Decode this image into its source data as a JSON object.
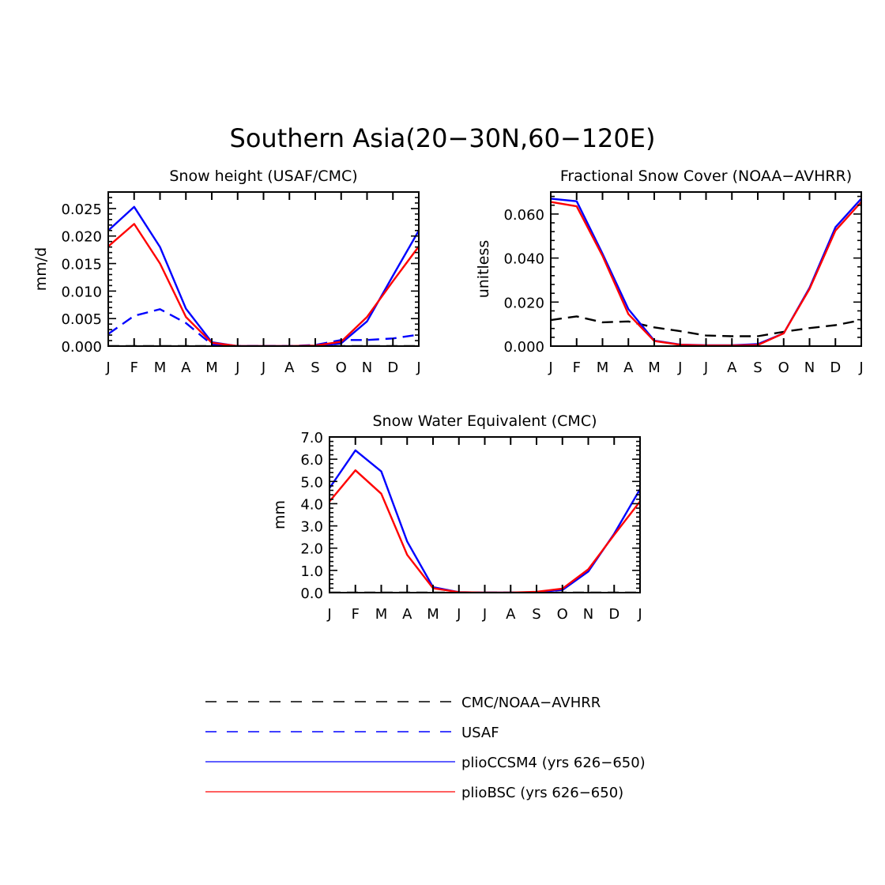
{
  "figure_title": "Southern Asia(20−30N,60−120E)",
  "colors": {
    "blue": "#0000ff",
    "red": "#ff0000",
    "black": "#000000"
  },
  "legend": [
    {
      "label": "CMC/NOAA−AVHRR",
      "color": "#000000",
      "style": "dashed"
    },
    {
      "label": "USAF",
      "color": "#0000ff",
      "style": "dashed"
    },
    {
      "label": "plioCCSM4 (yrs 626−650)",
      "color": "#0000ff",
      "style": "solid"
    },
    {
      "label": "plioBSC (yrs 626−650)",
      "color": "#ff0000",
      "style": "solid"
    }
  ],
  "chart_data": [
    {
      "type": "line",
      "title": "Snow height (USAF/CMC)",
      "xlabel": "",
      "ylabel": "mm/d",
      "categories": [
        "J",
        "F",
        "M",
        "A",
        "M",
        "J",
        "J",
        "A",
        "S",
        "O",
        "N",
        "D",
        "J"
      ],
      "ylim": [
        0,
        0.028
      ],
      "yticks": [
        "0.000",
        "0.005",
        "0.010",
        "0.015",
        "0.020",
        "0.025"
      ],
      "ytick_values": [
        0,
        0.005,
        0.01,
        0.015,
        0.02,
        0.025
      ],
      "series": [
        {
          "name": "CMC/NOAA−AVHRR",
          "color": "#000000",
          "style": "dashed",
          "values": [
            0,
            0,
            0,
            0,
            0,
            0,
            0,
            0,
            0,
            0,
            0,
            0,
            0
          ]
        },
        {
          "name": "USAF",
          "color": "#0000ff",
          "style": "dashed",
          "values": [
            0.0022,
            0.0055,
            0.0067,
            0.0042,
            0.0003,
            0,
            0,
            0,
            0.0002,
            0.0011,
            0.0011,
            0.0014,
            0.0021
          ]
        },
        {
          "name": "plioCCSM4 (yrs 626−650)",
          "color": "#0000ff",
          "style": "solid",
          "values": [
            0.021,
            0.0253,
            0.018,
            0.0068,
            0.0007,
            0,
            0,
            0,
            0,
            0.0005,
            0.0045,
            0.0128,
            0.021
          ]
        },
        {
          "name": "plioBSC (yrs 626−650)",
          "color": "#ff0000",
          "style": "solid",
          "values": [
            0.0181,
            0.0222,
            0.015,
            0.0053,
            0.0006,
            0,
            0,
            0,
            0.0001,
            0.0008,
            0.0053,
            0.0118,
            0.0181
          ]
        }
      ]
    },
    {
      "type": "line",
      "title": "Fractional Snow Cover (NOAA−AVHRR)",
      "xlabel": "",
      "ylabel": "unitless",
      "categories": [
        "J",
        "F",
        "M",
        "A",
        "M",
        "J",
        "J",
        "A",
        "S",
        "O",
        "N",
        "D",
        "J"
      ],
      "ylim": [
        0,
        0.07
      ],
      "yticks": [
        "0.000",
        "0.020",
        "0.040",
        "0.060"
      ],
      "ytick_values": [
        0,
        0.02,
        0.04,
        0.06
      ],
      "series": [
        {
          "name": "CMC/NOAA−AVHRR",
          "color": "#000000",
          "style": "dashed",
          "values": [
            0.0118,
            0.0135,
            0.0108,
            0.0112,
            0.0085,
            0.0068,
            0.0048,
            0.0045,
            0.0045,
            0.0065,
            0.0082,
            0.0095,
            0.0118
          ]
        },
        {
          "name": "plioCCSM4 (yrs 626−650)",
          "color": "#0000ff",
          "style": "solid",
          "values": [
            0.067,
            0.0658,
            0.042,
            0.0168,
            0.0025,
            0.0007,
            0.0004,
            0.0004,
            0.0009,
            0.0058,
            0.0265,
            0.054,
            0.067
          ]
        },
        {
          "name": "plioBSC (yrs 626−650)",
          "color": "#ff0000",
          "style": "solid",
          "values": [
            0.0655,
            0.0635,
            0.041,
            0.0145,
            0.0023,
            0.0006,
            0.0003,
            0.0003,
            0.0005,
            0.0058,
            0.026,
            0.0525,
            0.0655
          ]
        }
      ]
    },
    {
      "type": "line",
      "title": "Snow Water Equivalent (CMC)",
      "xlabel": "",
      "ylabel": "mm",
      "categories": [
        "J",
        "F",
        "M",
        "A",
        "M",
        "J",
        "J",
        "A",
        "S",
        "O",
        "N",
        "D",
        "J"
      ],
      "ylim": [
        0,
        7
      ],
      "yticks": [
        "0.0",
        "1.0",
        "2.0",
        "3.0",
        "4.0",
        "5.0",
        "6.0",
        "7.0"
      ],
      "ytick_values": [
        0,
        1,
        2,
        3,
        4,
        5,
        6,
        7
      ],
      "series": [
        {
          "name": "CMC/NOAA−AVHRR",
          "color": "#000000",
          "style": "dashed",
          "values": [
            0,
            0,
            0,
            0,
            0,
            0,
            0,
            0,
            0,
            0,
            0,
            0,
            0
          ]
        },
        {
          "name": "plioCCSM4 (yrs 626−650)",
          "color": "#0000ff",
          "style": "solid",
          "values": [
            4.7,
            6.4,
            5.45,
            2.3,
            0.25,
            0.02,
            0,
            0,
            0.02,
            0.12,
            0.95,
            2.65,
            4.65
          ]
        },
        {
          "name": "plioBSC (yrs 626−650)",
          "color": "#ff0000",
          "style": "solid",
          "values": [
            4.1,
            5.5,
            4.45,
            1.7,
            0.2,
            0.02,
            0,
            0,
            0.04,
            0.18,
            1.05,
            2.6,
            4.1
          ]
        }
      ]
    }
  ]
}
